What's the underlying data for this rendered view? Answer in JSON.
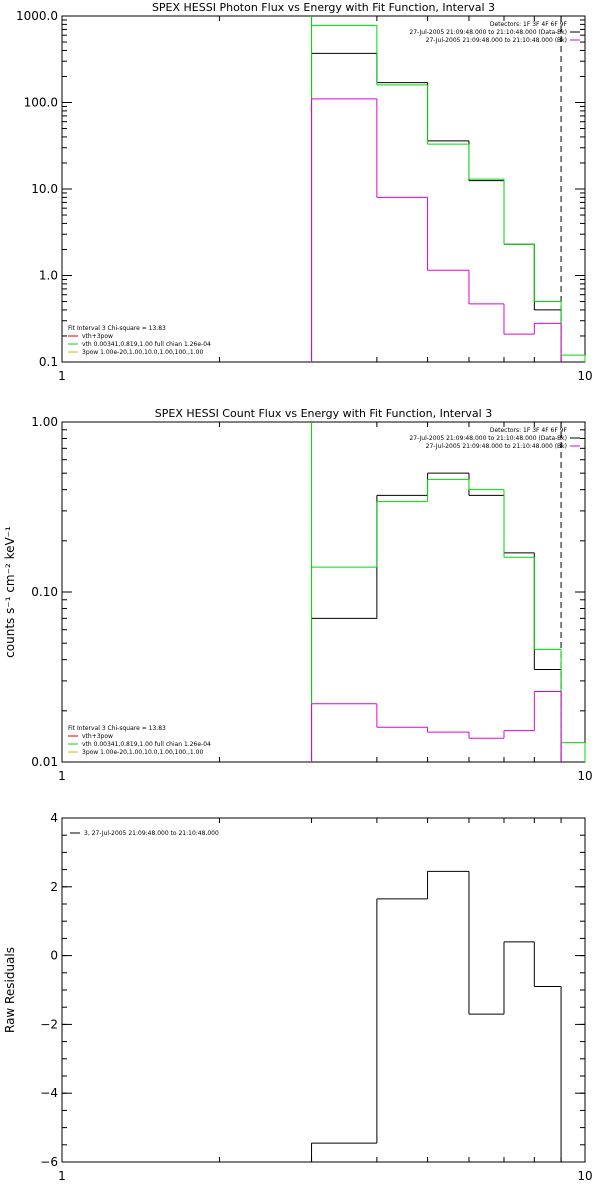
{
  "chart_data": [
    {
      "type": "line",
      "title": "SPEX HESSI Photon Flux vs Energy with Fit Function, Interval 3",
      "xlabel": "",
      "ylabel": "",
      "xscale": "log",
      "yscale": "log",
      "xlim": [
        1,
        10
      ],
      "ylim": [
        0.1,
        1000
      ],
      "x_ticks": [
        {
          "v": 1,
          "label": "1"
        },
        {
          "v": 10,
          "label": "10"
        }
      ],
      "y_ticks": [
        {
          "v": 0.1,
          "label": "0.1"
        },
        {
          "v": 1,
          "label": "1.0"
        },
        {
          "v": 10,
          "label": "10.0"
        },
        {
          "v": 100,
          "label": "100.0"
        },
        {
          "v": 1000,
          "label": "1000.0"
        }
      ],
      "vlines": [
        {
          "x": 3.0,
          "style": "dotted",
          "color": "#000000"
        },
        {
          "x": 3.0,
          "style": "solid",
          "color": "#00dd00"
        },
        {
          "x": 9.0,
          "style": "dashed",
          "color": "#000000"
        }
      ],
      "series": [
        {
          "color": "#000000",
          "edges": [
            3,
            4,
            5,
            6,
            7,
            8,
            9
          ],
          "values": [
            370,
            170,
            36,
            12.5,
            2.3,
            0.4
          ]
        },
        {
          "color": "#00dd00",
          "edges": [
            3,
            4,
            5,
            6,
            7,
            8,
            9,
            10
          ],
          "values": [
            780,
            160,
            33,
            13,
            2.3,
            0.5,
            0.12
          ]
        },
        {
          "color": "#dd00dd",
          "edges": [
            3,
            4,
            5,
            6,
            7,
            8,
            9
          ],
          "values": [
            110,
            8,
            1.15,
            0.47,
            0.21,
            0.28
          ]
        }
      ],
      "legend_top": [
        {
          "text": "Detectors: 1F 3F 4F 6F 9F",
          "color": ""
        },
        {
          "text": "27-Jul-2005 21:09:48.000 to 21:10:48.000 (Data-Bk)",
          "color": "#000000"
        },
        {
          "text": "27-Jul-2005 21:09:48.000 to 21:10:48.000 (Bk)",
          "color": "#dd00dd"
        }
      ],
      "legend_bottom": [
        {
          "text": "Fit Interval 3   Chi-square = 13.83",
          "color": ""
        },
        {
          "text": "vth+3pow",
          "color": "#dd0000"
        },
        {
          "text": "vth 0.00341,0.819,1.00   full chian 1.26e-04",
          "color": "#00dd00"
        },
        {
          "text": "3pow 1.00e-20,1.00,10.0,1.00,100.,1.00",
          "color": "#ddbb00"
        }
      ]
    },
    {
      "type": "line",
      "title": "SPEX HESSI Count Flux vs Energy with Fit Function, Interval 3",
      "xlabel": "",
      "ylabel": "counts s⁻¹ cm⁻² keV⁻¹",
      "xscale": "log",
      "yscale": "log",
      "xlim": [
        1,
        10
      ],
      "ylim": [
        0.01,
        1
      ],
      "x_ticks": [
        {
          "v": 1,
          "label": "1"
        },
        {
          "v": 10,
          "label": "10"
        }
      ],
      "y_ticks": [
        {
          "v": 0.01,
          "label": "0.01"
        },
        {
          "v": 0.1,
          "label": "0.10"
        },
        {
          "v": 1,
          "label": "1.00"
        }
      ],
      "vlines": [
        {
          "x": 3.0,
          "style": "dotted",
          "color": "#000000"
        },
        {
          "x": 3.0,
          "style": "solid",
          "color": "#00dd00"
        },
        {
          "x": 9.0,
          "style": "dashed",
          "color": "#000000"
        }
      ],
      "series": [
        {
          "color": "#000000",
          "edges": [
            3,
            4,
            5,
            6,
            7,
            8,
            9
          ],
          "values": [
            0.07,
            0.37,
            0.5,
            0.37,
            0.17,
            0.035
          ]
        },
        {
          "color": "#00dd00",
          "edges": [
            3,
            4,
            5,
            6,
            7,
            8,
            9,
            10
          ],
          "values": [
            0.14,
            0.34,
            0.46,
            0.4,
            0.16,
            0.046,
            0.013
          ]
        },
        {
          "color": "#dd00dd",
          "edges": [
            3,
            4,
            5,
            6,
            7,
            8,
            9
          ],
          "values": [
            0.022,
            0.016,
            0.015,
            0.0138,
            0.0153,
            0.026
          ]
        }
      ],
      "legend_top": [
        {
          "text": "Detectors: 1F 3F 4F 6F 9F",
          "color": ""
        },
        {
          "text": "27-Jul-2005 21:09:48.000 to 21:10:48.000 (Data-Bk)",
          "color": "#000000"
        },
        {
          "text": "27-Jul-2005 21:09:48.000 to 21:10:48.000 (Bk)",
          "color": "#dd00dd"
        }
      ],
      "legend_bottom": [
        {
          "text": "Fit Interval 3   Chi-square = 13.83",
          "color": ""
        },
        {
          "text": "vth+3pow",
          "color": "#dd0000"
        },
        {
          "text": "vth 0.00341,0.819,1.00   full chian 1.26e-04",
          "color": "#00dd00"
        },
        {
          "text": "3pow 1.00e-20,1.00,10.0,1.00,100.,1.00",
          "color": "#ddbb00"
        }
      ]
    },
    {
      "type": "line",
      "title": "",
      "xlabel": "",
      "ylabel": "Raw Residuals",
      "xscale": "log",
      "yscale": "linear",
      "xlim": [
        1,
        10
      ],
      "ylim": [
        -6,
        4
      ],
      "x_ticks": [
        {
          "v": 1,
          "label": "1"
        },
        {
          "v": 10,
          "label": "10"
        }
      ],
      "y_ticks": [
        {
          "v": -6,
          "label": "−6"
        },
        {
          "v": -4,
          "label": "−4"
        },
        {
          "v": -2,
          "label": "−2"
        },
        {
          "v": 0,
          "label": "0"
        },
        {
          "v": 2,
          "label": "2"
        },
        {
          "v": 4,
          "label": "4"
        }
      ],
      "vlines": [],
      "series": [
        {
          "color": "#000000",
          "edges": [
            3,
            4,
            5,
            6,
            7,
            8,
            9
          ],
          "values": [
            -5.45,
            1.65,
            2.45,
            -1.7,
            0.4,
            -0.9
          ]
        }
      ],
      "legend_top": [
        {
          "text": "3, 27-Jul-2005 21:09:48.000 to 21:10:48.000",
          "color": "#000000"
        }
      ],
      "legend_bottom": []
    }
  ]
}
